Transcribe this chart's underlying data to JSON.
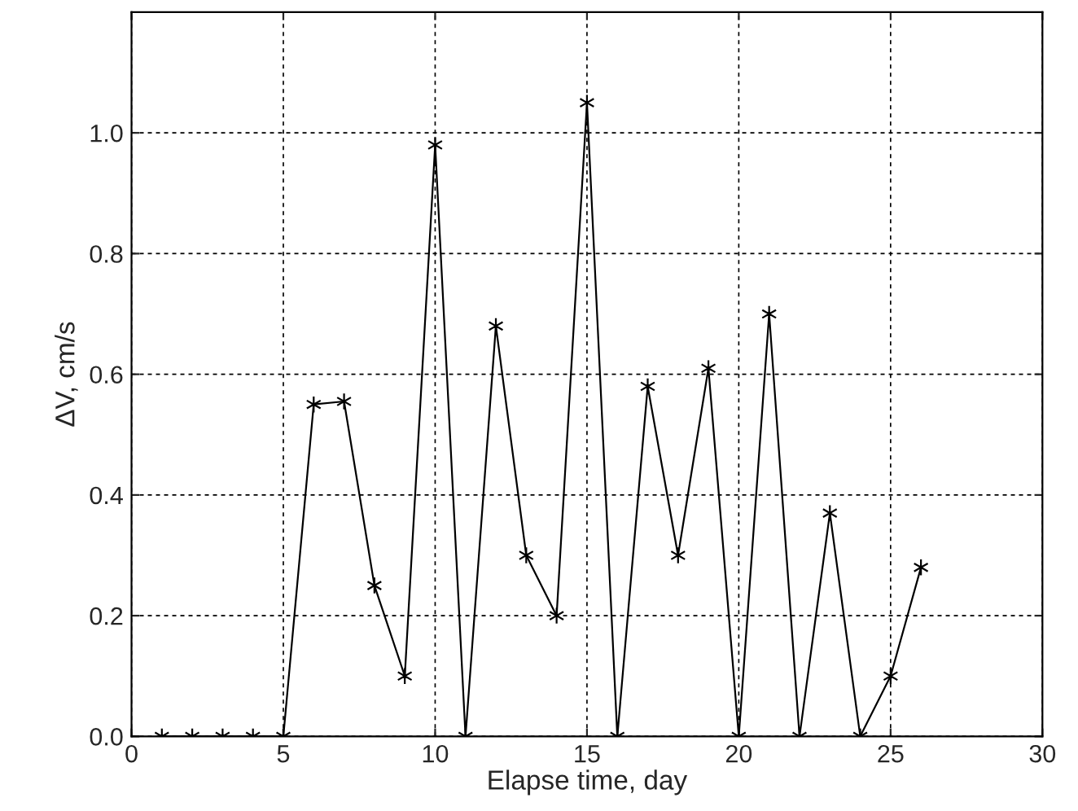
{
  "chart_data": {
    "type": "line",
    "xlabel": "Elapse time, day",
    "ylabel": "ΔV, cm/s",
    "x": [
      1,
      2,
      3,
      4,
      5,
      6,
      7,
      8,
      9,
      10,
      11,
      12,
      13,
      14,
      15,
      16,
      17,
      18,
      19,
      20,
      21,
      22,
      23,
      24,
      25,
      26
    ],
    "series": [
      {
        "color": "#000000",
        "values": [
          0,
          0,
          0,
          0,
          0,
          0.55,
          0.555,
          0.25,
          0.1,
          0.98,
          0,
          0.68,
          0.3,
          0.2,
          1.05,
          0,
          0.58,
          0.3,
          0.61,
          0,
          0.7,
          0,
          0.37,
          0,
          0.1,
          0.28
        ]
      }
    ],
    "xlim": [
      0,
      30
    ],
    "xticks": [
      0,
      5,
      10,
      15,
      20,
      25,
      30
    ],
    "ylim": [
      0,
      1.2
    ],
    "yticks": [
      {
        "value": 0,
        "label": "0.0"
      },
      {
        "value": 0.2,
        "label": "0.2"
      },
      {
        "value": 0.4,
        "label": "0.4"
      },
      {
        "value": 0.6,
        "label": "0.6"
      },
      {
        "value": 0.8,
        "label": "0.8"
      },
      {
        "value": 1.0,
        "label": "1.0"
      }
    ],
    "grid": true,
    "marker": "cross",
    "line_style": "solid",
    "legend": false
  }
}
